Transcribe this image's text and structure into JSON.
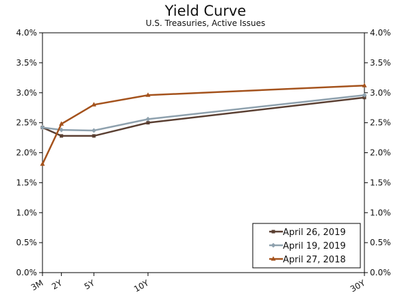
{
  "chart_data": {
    "type": "line",
    "title": "Yield Curve",
    "subtitle": "U.S. Treasuries, Active Issues",
    "x_categories": [
      "3M",
      "2Y",
      "5Y",
      "10Y",
      "30Y"
    ],
    "x_positions_years": [
      0.25,
      2,
      5,
      10,
      30
    ],
    "y_ticks": [
      "0.0%",
      "0.5%",
      "1.0%",
      "1.5%",
      "2.0%",
      "2.5%",
      "3.0%",
      "3.5%",
      "4.0%"
    ],
    "ylim": [
      0,
      4.0
    ],
    "xlim": [
      0.25,
      30
    ],
    "grid": false,
    "legend_position": "bottom-right",
    "series": [
      {
        "name": "April 26, 2019",
        "color": "#5a3f32",
        "marker": "square",
        "values": [
          2.42,
          2.28,
          2.28,
          2.5,
          2.92
        ]
      },
      {
        "name": "April 19, 2019",
        "color": "#8ea1ae",
        "marker": "diamond",
        "values": [
          2.42,
          2.38,
          2.37,
          2.56,
          2.96
        ]
      },
      {
        "name": "April 27, 2018",
        "color": "#a4521c",
        "marker": "triangle",
        "values": [
          1.81,
          2.48,
          2.8,
          2.96,
          3.12
        ]
      }
    ]
  }
}
